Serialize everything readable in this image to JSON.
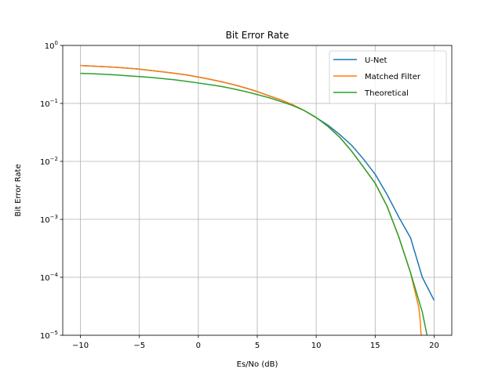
{
  "chart_data": {
    "type": "line",
    "title": "Bit Error Rate",
    "xlabel": "Es/No (dB)",
    "ylabel": "Bit Error Rate",
    "xlim": [
      -11.5,
      21.5
    ],
    "ylim": [
      1e-05,
      1
    ],
    "yscale": "log",
    "grid": true,
    "legend_position": "top-right",
    "x_ticks": [
      {
        "value": -10,
        "label": "−10"
      },
      {
        "value": -5,
        "label": "−5"
      },
      {
        "value": 0,
        "label": "0"
      },
      {
        "value": 5,
        "label": "5"
      },
      {
        "value": 10,
        "label": "10"
      },
      {
        "value": 15,
        "label": "15"
      },
      {
        "value": 20,
        "label": "20"
      }
    ],
    "y_ticks": [
      {
        "value": 1e-05,
        "base": "10",
        "exp": "−5"
      },
      {
        "value": 0.0001,
        "base": "10",
        "exp": "−4"
      },
      {
        "value": 0.001,
        "base": "10",
        "exp": "−3"
      },
      {
        "value": 0.01,
        "base": "10",
        "exp": "−2"
      },
      {
        "value": 0.1,
        "base": "10",
        "exp": "−1"
      },
      {
        "value": 1,
        "base": "10",
        "exp": "0"
      }
    ],
    "series": [
      {
        "name": "U-Net",
        "color": "#1f77b4",
        "x": [
          -10,
          -9,
          -8,
          -7,
          -6,
          -5,
          -4,
          -3,
          -2,
          -1,
          0,
          1,
          2,
          3,
          4,
          5,
          6,
          7,
          8,
          9,
          10,
          11,
          12,
          13,
          14,
          15,
          16,
          17,
          18,
          19,
          20
        ],
        "y": [
          0.45,
          0.44,
          0.43,
          0.42,
          0.405,
          0.39,
          0.37,
          0.35,
          0.33,
          0.31,
          0.285,
          0.26,
          0.235,
          0.21,
          0.185,
          0.16,
          0.135,
          0.115,
          0.095,
          0.075,
          0.057,
          0.042,
          0.029,
          0.019,
          0.011,
          0.006,
          0.0027,
          0.0011,
          0.00048,
          0.0001,
          4e-05
        ]
      },
      {
        "name": "Matched Filter",
        "color": "#ff7f0e",
        "x": [
          -10,
          -9,
          -8,
          -7,
          -6,
          -5,
          -4,
          -3,
          -2,
          -1,
          0,
          1,
          2,
          3,
          4,
          5,
          6,
          7,
          8,
          9,
          10,
          11,
          12,
          13,
          14,
          15,
          16,
          17,
          18,
          18.7,
          18.8,
          18.9
        ],
        "y": [
          0.45,
          0.44,
          0.43,
          0.42,
          0.405,
          0.39,
          0.37,
          0.35,
          0.33,
          0.31,
          0.285,
          0.26,
          0.235,
          0.21,
          0.185,
          0.16,
          0.135,
          0.115,
          0.095,
          0.075,
          0.057,
          0.04,
          0.026,
          0.015,
          0.008,
          0.0042,
          0.0017,
          0.0005,
          0.00012,
          3e-05,
          2e-05,
          1e-05
        ]
      },
      {
        "name": "Theoretical",
        "color": "#2ca02c",
        "x": [
          -10,
          -9,
          -8,
          -7,
          -6,
          -5,
          -4,
          -3,
          -2,
          -1,
          0,
          1,
          2,
          3,
          4,
          5,
          6,
          7,
          8,
          9,
          10,
          11,
          12,
          13,
          14,
          15,
          16,
          17,
          18,
          19,
          19.4
        ],
        "y": [
          0.33,
          0.325,
          0.318,
          0.31,
          0.3,
          0.29,
          0.28,
          0.268,
          0.255,
          0.24,
          0.225,
          0.21,
          0.195,
          0.178,
          0.16,
          0.142,
          0.125,
          0.108,
          0.092,
          0.075,
          0.057,
          0.04,
          0.026,
          0.015,
          0.008,
          0.0042,
          0.0017,
          0.0005,
          0.00012,
          2.5e-05,
          1e-05
        ]
      }
    ]
  }
}
